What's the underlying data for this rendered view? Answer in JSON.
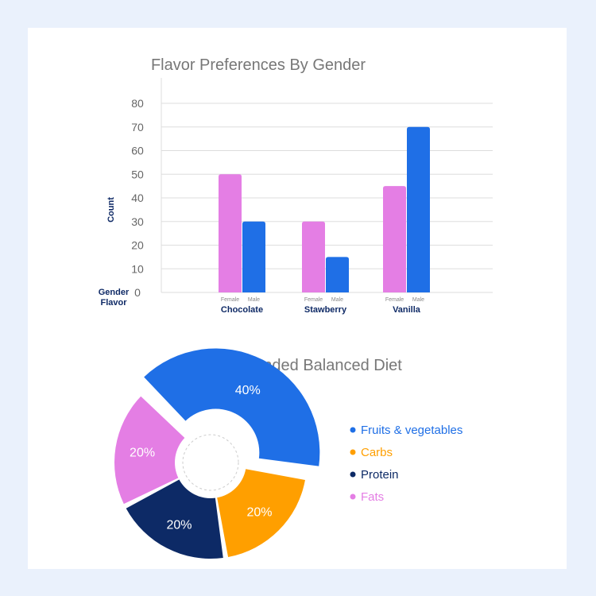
{
  "chart_data": [
    {
      "type": "bar",
      "title": "Flavor Preferences By Gender",
      "ylabel": "Count",
      "ylim": [
        0,
        80
      ],
      "yticks": [
        0,
        10,
        20,
        30,
        40,
        50,
        60,
        70,
        80
      ],
      "row_labels": [
        "Gender",
        "Flavor"
      ],
      "categories": [
        "Chocolate",
        "Stawberry",
        "Vanilla"
      ],
      "sub_categories": [
        "Female",
        "Male"
      ],
      "series": [
        {
          "name": "Female",
          "color": "#e47ee4",
          "values": [
            50,
            30,
            45
          ]
        },
        {
          "name": "Male",
          "color": "#1f6fe6",
          "values": [
            30,
            15,
            70
          ]
        }
      ],
      "grid": true
    },
    {
      "type": "pie",
      "title": "Recommended Balanced Diet",
      "slices": [
        {
          "label": "Fruits & vegetables",
          "value": 40,
          "text": "40%",
          "color": "#1f6fe6",
          "exploded": true
        },
        {
          "label": "Carbs",
          "value": 20,
          "text": "20%",
          "color": "#ff9f00",
          "exploded": false
        },
        {
          "label": "Protein",
          "value": 20,
          "text": "20%",
          "color": "#0d2a66",
          "exploded": false
        },
        {
          "label": "Fats",
          "value": 20,
          "text": "20%",
          "color": "#e47ee4",
          "exploded": false
        }
      ],
      "legend_position": "right"
    }
  ]
}
